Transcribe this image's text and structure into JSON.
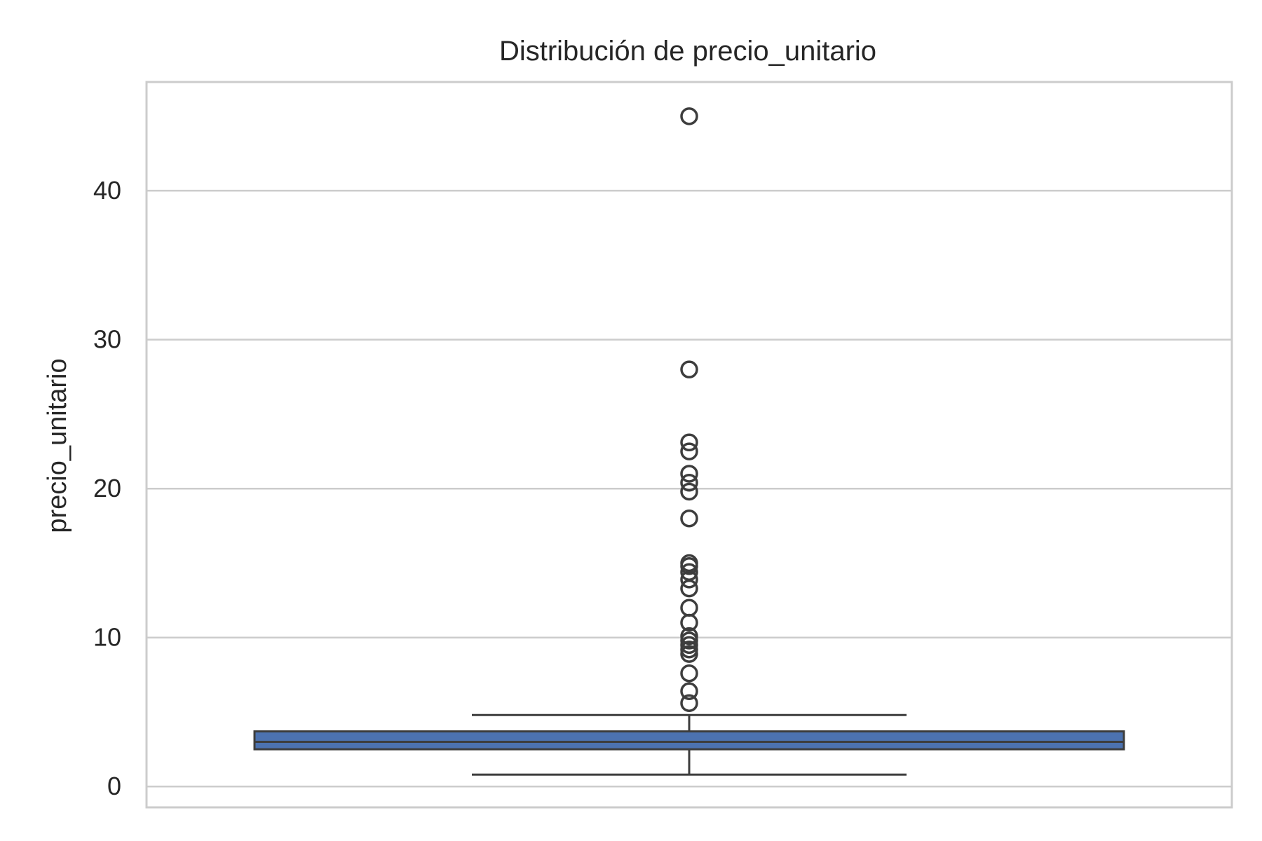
{
  "chart_data": {
    "type": "box",
    "title": "Distribución de precio_unitario",
    "xlabel": "",
    "ylabel": "precio_unitario",
    "ylim": [
      -1.4,
      47.3
    ],
    "yticks": [
      0,
      10,
      20,
      30,
      40
    ],
    "grid": "y",
    "box": {
      "whisker_low": 0.8,
      "q1": 2.5,
      "median": 3.0,
      "q3": 3.7,
      "whisker_high": 4.8
    },
    "outliers": [
      5.6,
      6.4,
      7.6,
      8.9,
      9.2,
      9.5,
      9.8,
      10.1,
      11.0,
      12.0,
      13.3,
      13.9,
      14.4,
      14.8,
      15.0,
      18.0,
      19.8,
      20.4,
      21.0,
      22.5,
      23.1,
      28.0,
      45.0
    ],
    "colors": {
      "box_fill": "#4c72b0",
      "lines": "#3d3d3d",
      "grid": "#cccccc",
      "frame": "#cccccc"
    }
  }
}
